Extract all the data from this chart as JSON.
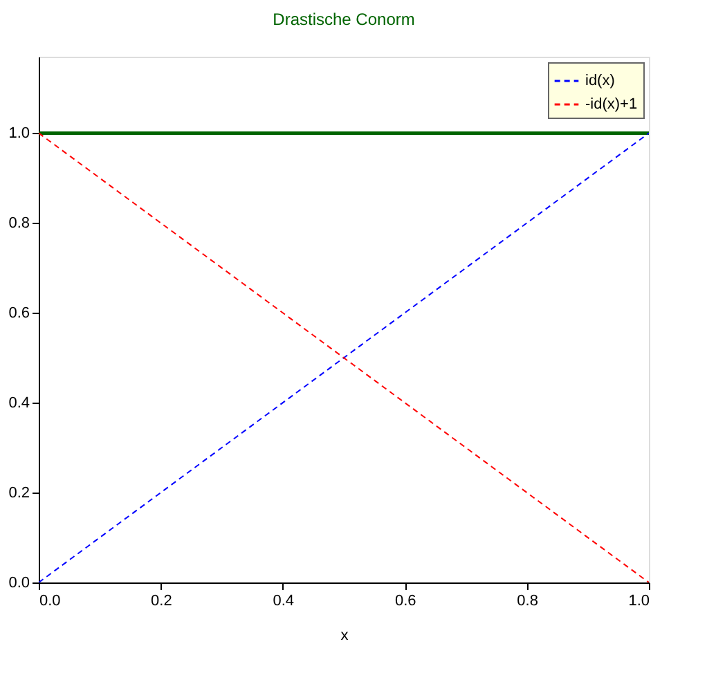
{
  "chart_data": {
    "type": "line",
    "title": "Drastische Conorm",
    "xlabel": "x",
    "x": [
      0,
      1
    ],
    "series": [
      {
        "color": "#006400",
        "values": [
          1,
          1
        ],
        "line_style": "solid"
      },
      {
        "name": "id(x)",
        "color": "#0000ff",
        "values": [
          0,
          1
        ],
        "line_style": "dashed"
      },
      {
        "name": "-id(x)+1",
        "color": "#ff0000",
        "values": [
          1,
          0
        ],
        "line_style": "dashed"
      }
    ],
    "xlim": [
      0,
      1
    ],
    "ylim": [
      0,
      1.17
    ],
    "xticks": [
      {
        "value": 0,
        "label": "0.0"
      },
      0.2,
      0.4,
      0.6,
      0.8,
      {
        "value": 1,
        "label": "1.0"
      }
    ],
    "yticks": [
      {
        "value": 0,
        "label": "0.0"
      },
      0.2,
      0.4,
      0.6,
      0.8,
      {
        "value": 1,
        "label": "1.0"
      }
    ],
    "grid": false,
    "legend": "top right",
    "marker": "none"
  }
}
